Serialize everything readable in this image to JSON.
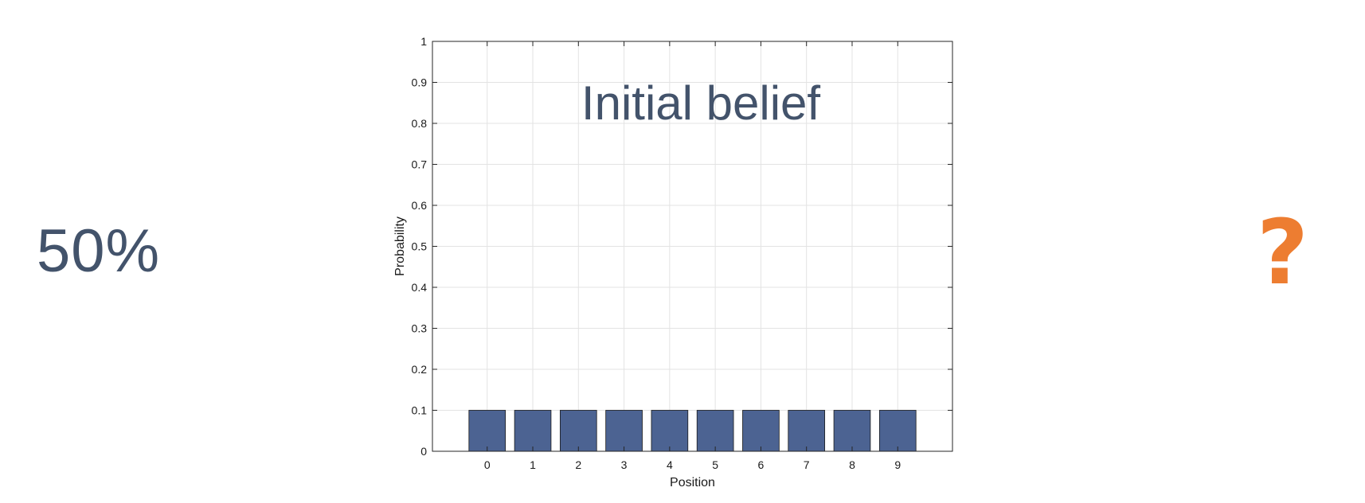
{
  "left_stat": {
    "text": "50%"
  },
  "right_symbol": {
    "text": "?"
  },
  "colors": {
    "bar": "#4c6392",
    "bar_edge": "#1a1a1a",
    "title": "#43536b",
    "left_stat": "#43536b",
    "question": "#ed7d31"
  },
  "chart_data": {
    "type": "bar",
    "title": "Initial belief",
    "xlabel": "Position",
    "ylabel": "Probability",
    "categories": [
      "0",
      "1",
      "2",
      "3",
      "4",
      "5",
      "6",
      "7",
      "8",
      "9"
    ],
    "values": [
      0.1,
      0.1,
      0.1,
      0.1,
      0.1,
      0.1,
      0.1,
      0.1,
      0.1,
      0.1
    ],
    "ylim": [
      0,
      1
    ],
    "xlim": [
      -1.2,
      10.2
    ],
    "yticks": [
      "0",
      "0.1",
      "0.2",
      "0.3",
      "0.4",
      "0.5",
      "0.6",
      "0.7",
      "0.8",
      "0.9",
      "1"
    ],
    "grid": true,
    "legend": "none"
  }
}
